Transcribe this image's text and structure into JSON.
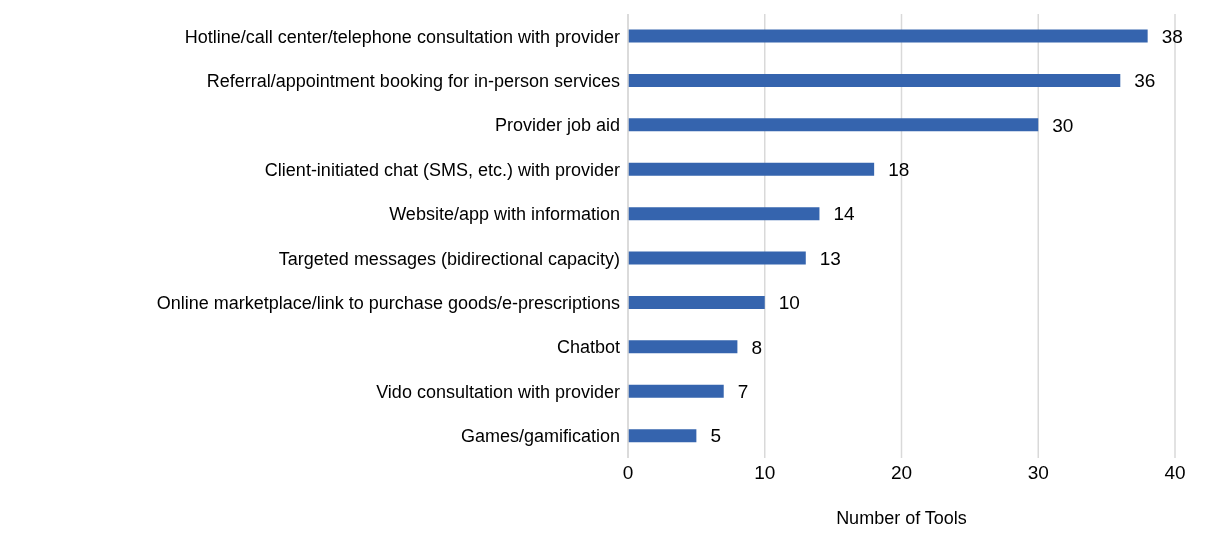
{
  "chart_data": {
    "type": "bar",
    "orientation": "horizontal",
    "xlabel": "Number of Tools",
    "categories": [
      "Hotline/call center/telephone consultation with provider",
      "Referral/appointment booking for in-person services",
      "Provider job aid",
      "Client-initiated chat (SMS, etc.) with provider",
      "Website/app with information",
      "Targeted messages (bidirectional capacity)",
      "Online marketplace/link to purchase goods/e-prescriptions",
      "Chatbot",
      "Vido consultation with provider",
      "Games/gamification"
    ],
    "values": [
      38,
      36,
      30,
      18,
      14,
      13,
      10,
      8,
      7,
      5
    ],
    "color": "#3564ae",
    "xlim": [
      0,
      40
    ],
    "xticks": [
      0,
      10,
      20,
      30,
      40
    ],
    "grid": "x",
    "data_labels": true
  }
}
